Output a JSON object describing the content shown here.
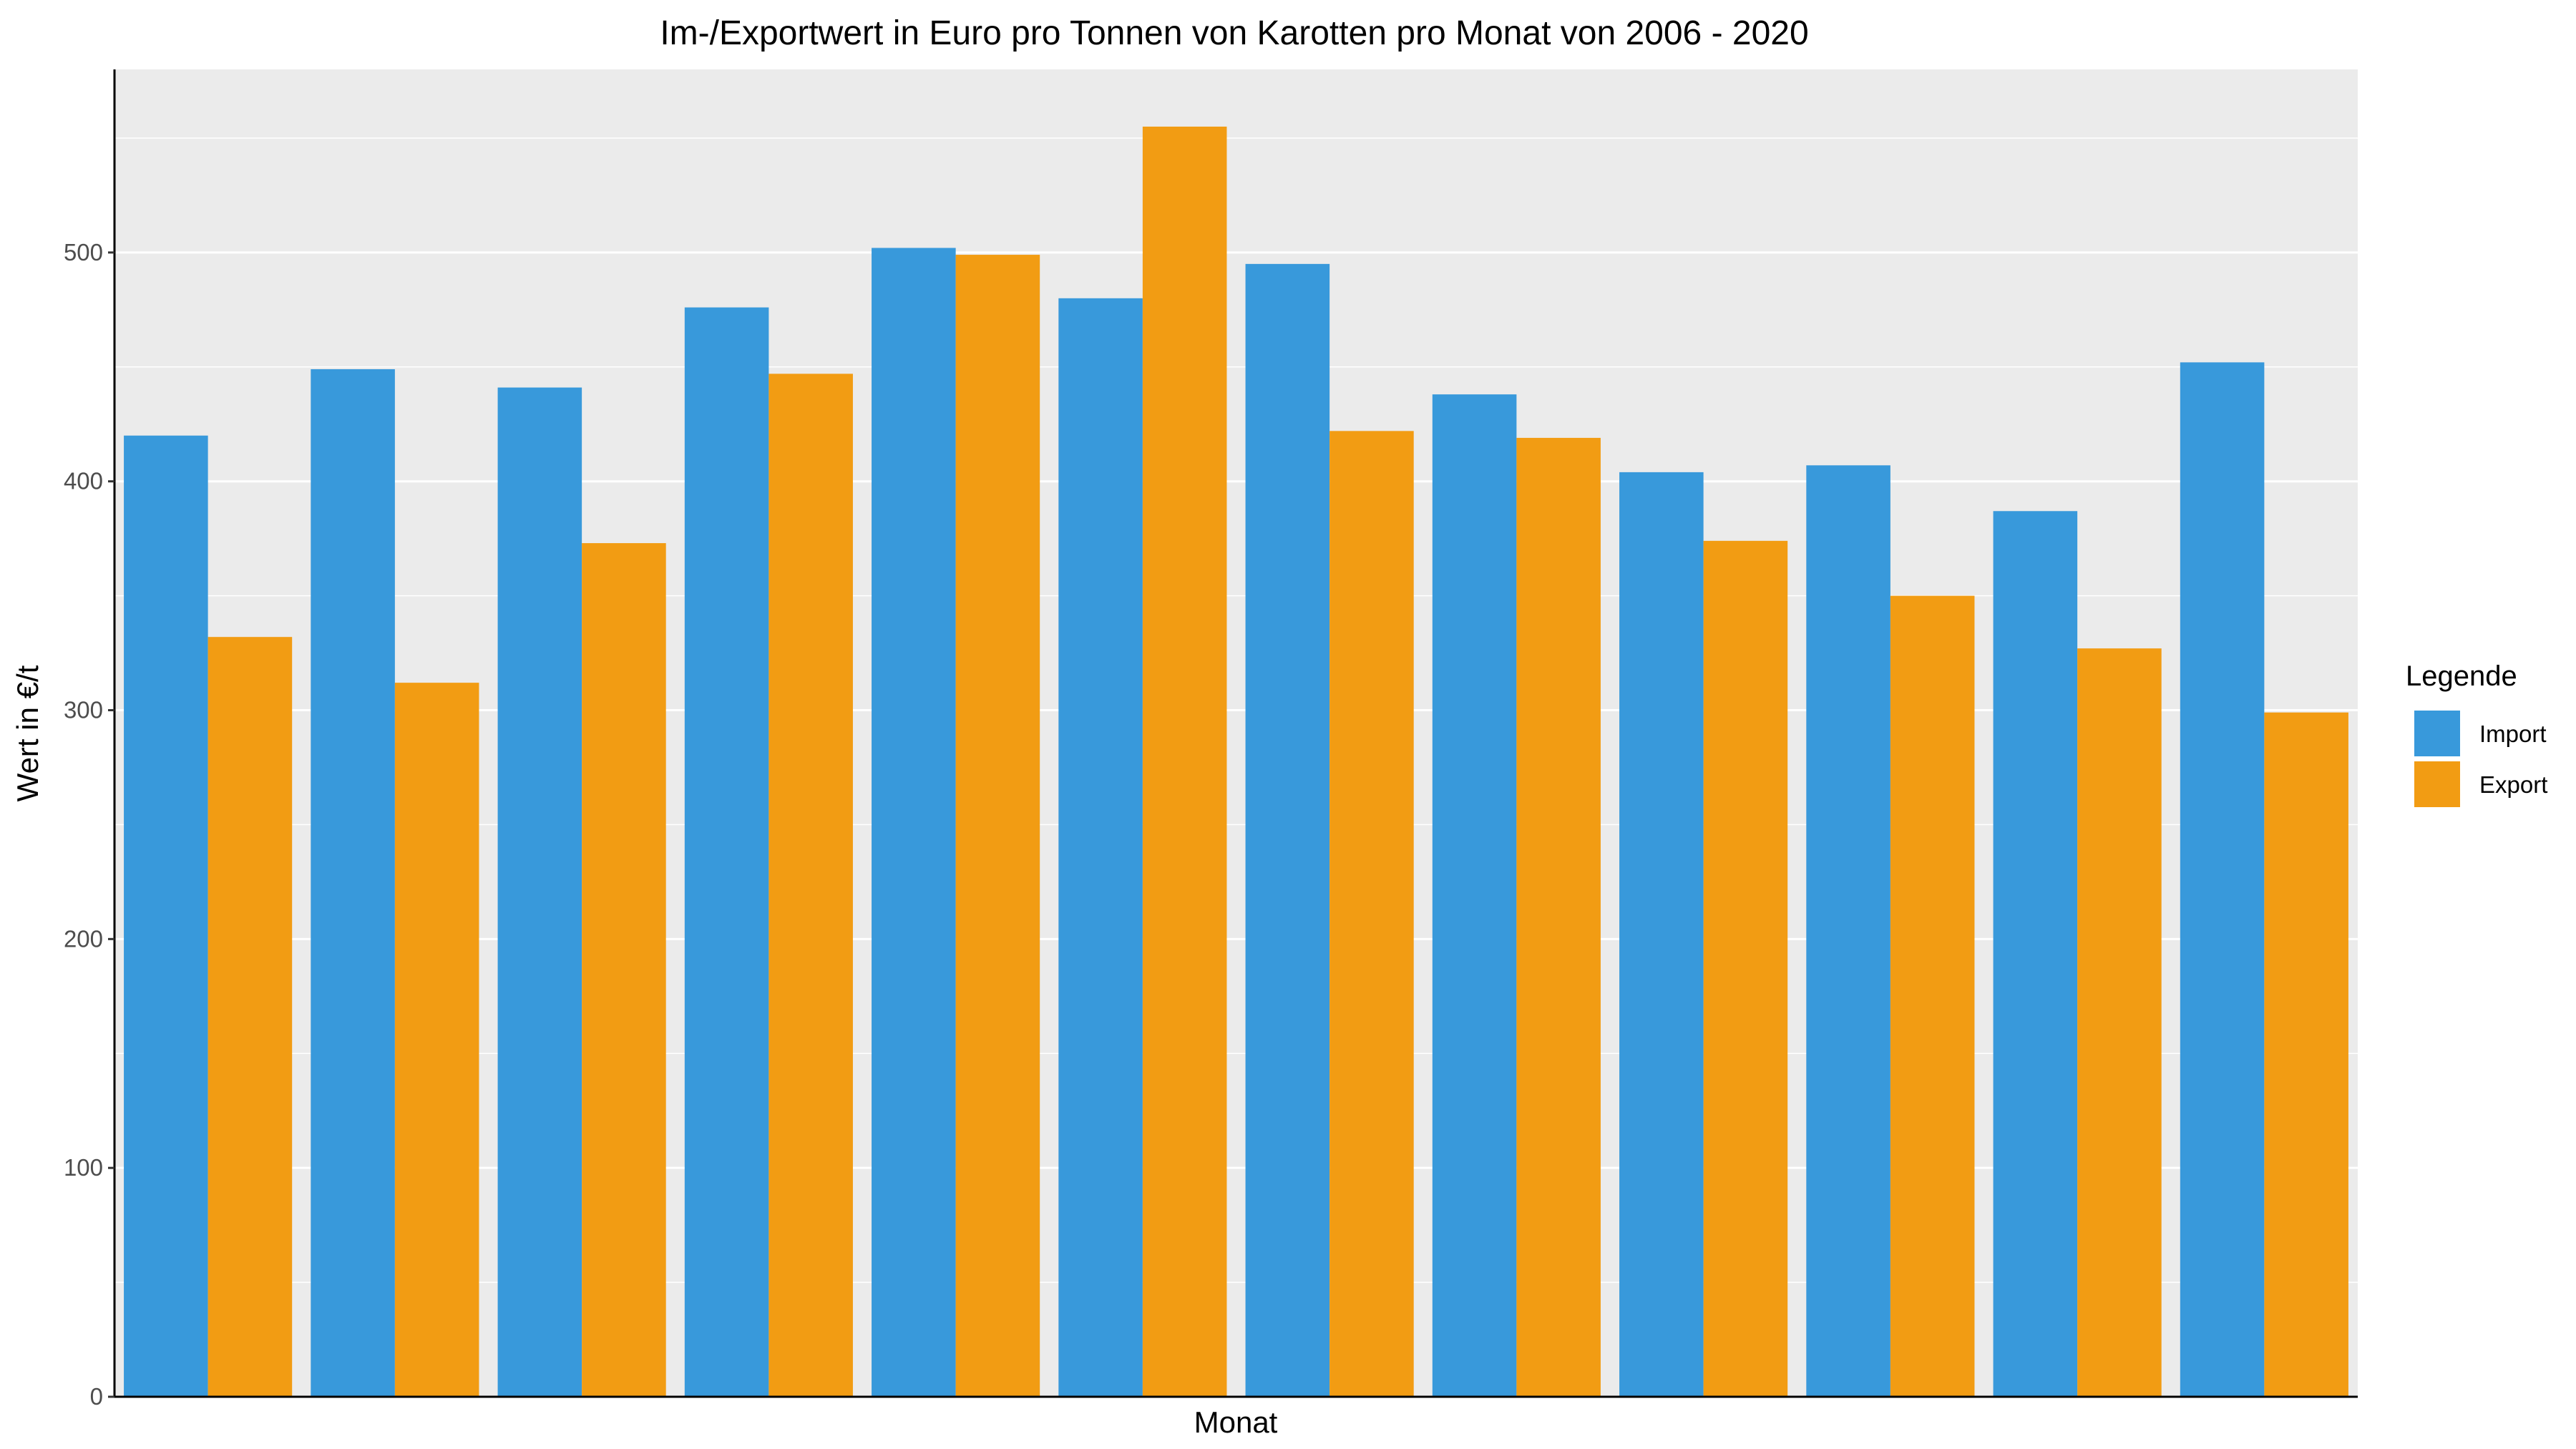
{
  "chart_data": {
    "type": "bar",
    "title": "Im-/Exportwert in Euro pro Tonnen von Karotten pro Monat von 2006 - 2020",
    "xlabel": "Monat",
    "ylabel": "Wert in €/t",
    "ylim": [
      0,
      580
    ],
    "yticks": [
      "0",
      "100",
      "200",
      "300",
      "400",
      "500"
    ],
    "grid": true,
    "legend_position": "right",
    "legend_title": "Legende",
    "categories": [
      "",
      "",
      "",
      "",
      "",
      "",
      "",
      "",
      "",
      "",
      "",
      ""
    ],
    "series": [
      {
        "name": "Import",
        "color": "#3899db",
        "values": [
          420,
          449,
          441,
          476,
          502,
          480,
          495,
          438,
          404,
          407,
          387,
          452
        ]
      },
      {
        "name": "Export",
        "color": "#f29c13",
        "values": [
          332,
          312,
          373,
          447,
          499,
          555,
          422,
          419,
          374,
          350,
          327,
          299
        ]
      }
    ]
  }
}
